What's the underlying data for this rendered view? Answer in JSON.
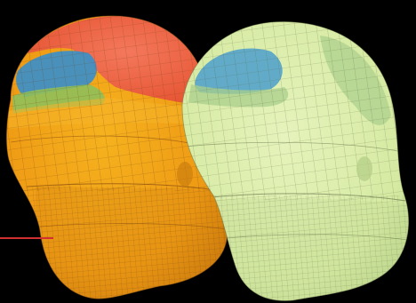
{
  "scene": {
    "description_free": true,
    "background": "#000000",
    "left_model": {
      "colors": {
        "body": "#F0A018",
        "body_dark": "#C77A0E",
        "crown": "#EE5A33",
        "crown_light": "#F2745A",
        "blue": "#3F8FC4",
        "green": "#8FBF5A",
        "mesh": "#6B3E12"
      }
    },
    "right_model": {
      "colors": {
        "body": "#D9EBA6",
        "body_dark": "#B9D48A",
        "blue": "#5BA6C9",
        "green": "#A9CF8C",
        "mesh": "#5E6B44"
      }
    },
    "indicator_line": {
      "color": "#D23030"
    }
  }
}
